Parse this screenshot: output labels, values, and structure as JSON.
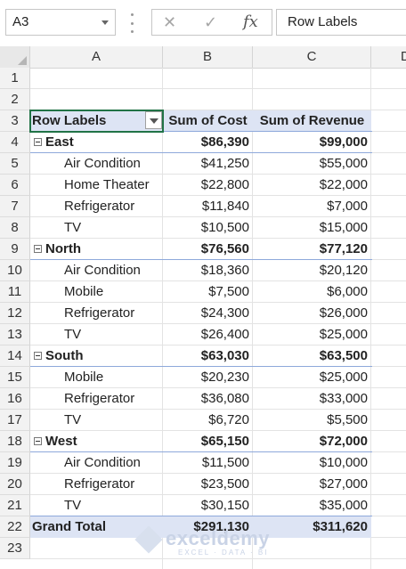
{
  "formula_bar": {
    "name_box": "A3",
    "formula": "Row Labels"
  },
  "columns": [
    "A",
    "B",
    "C",
    "D"
  ],
  "row_numbers": [
    "1",
    "2",
    "3",
    "4",
    "5",
    "6",
    "7",
    "8",
    "9",
    "10",
    "11",
    "12",
    "13",
    "14",
    "15",
    "16",
    "17",
    "18",
    "19",
    "20",
    "21",
    "22",
    "23"
  ],
  "pivot": {
    "header": {
      "row_labels": "Row Labels",
      "cost": "Sum of Cost",
      "revenue": "Sum of Revenue"
    },
    "rows": [
      {
        "label": "East",
        "cost": "$86,390",
        "revenue": "$99,000",
        "level": "region"
      },
      {
        "label": "Air Condition",
        "cost": "$41,250",
        "revenue": "$55,000",
        "level": "item"
      },
      {
        "label": "Home Theater",
        "cost": "$22,800",
        "revenue": "$22,000",
        "level": "item"
      },
      {
        "label": "Refrigerator",
        "cost": "$11,840",
        "revenue": "$7,000",
        "level": "item"
      },
      {
        "label": "TV",
        "cost": "$10,500",
        "revenue": "$15,000",
        "level": "item"
      },
      {
        "label": "North",
        "cost": "$76,560",
        "revenue": "$77,120",
        "level": "region"
      },
      {
        "label": "Air Condition",
        "cost": "$18,360",
        "revenue": "$20,120",
        "level": "item"
      },
      {
        "label": "Mobile",
        "cost": "$7,500",
        "revenue": "$6,000",
        "level": "item"
      },
      {
        "label": "Refrigerator",
        "cost": "$24,300",
        "revenue": "$26,000",
        "level": "item"
      },
      {
        "label": "TV",
        "cost": "$26,400",
        "revenue": "$25,000",
        "level": "item"
      },
      {
        "label": "South",
        "cost": "$63,030",
        "revenue": "$63,500",
        "level": "region"
      },
      {
        "label": "Mobile",
        "cost": "$20,230",
        "revenue": "$25,000",
        "level": "item"
      },
      {
        "label": "Refrigerator",
        "cost": "$36,080",
        "revenue": "$33,000",
        "level": "item"
      },
      {
        "label": "TV",
        "cost": "$6,720",
        "revenue": "$5,500",
        "level": "item"
      },
      {
        "label": "West",
        "cost": "$65,150",
        "revenue": "$72,000",
        "level": "region"
      },
      {
        "label": "Air Condition",
        "cost": "$11,500",
        "revenue": "$10,000",
        "level": "item"
      },
      {
        "label": "Refrigerator",
        "cost": "$23,500",
        "revenue": "$27,000",
        "level": "item"
      },
      {
        "label": "TV",
        "cost": "$30,150",
        "revenue": "$35,000",
        "level": "item"
      }
    ],
    "grand_total": {
      "label": "Grand Total",
      "cost": "$291,130",
      "revenue": "$311,620"
    }
  },
  "watermark": {
    "name": "exceldemy",
    "tagline": "EXCEL · DATA · BI"
  },
  "colors": {
    "pivot_header_bg": "#dde4f4",
    "selection": "#217346"
  }
}
